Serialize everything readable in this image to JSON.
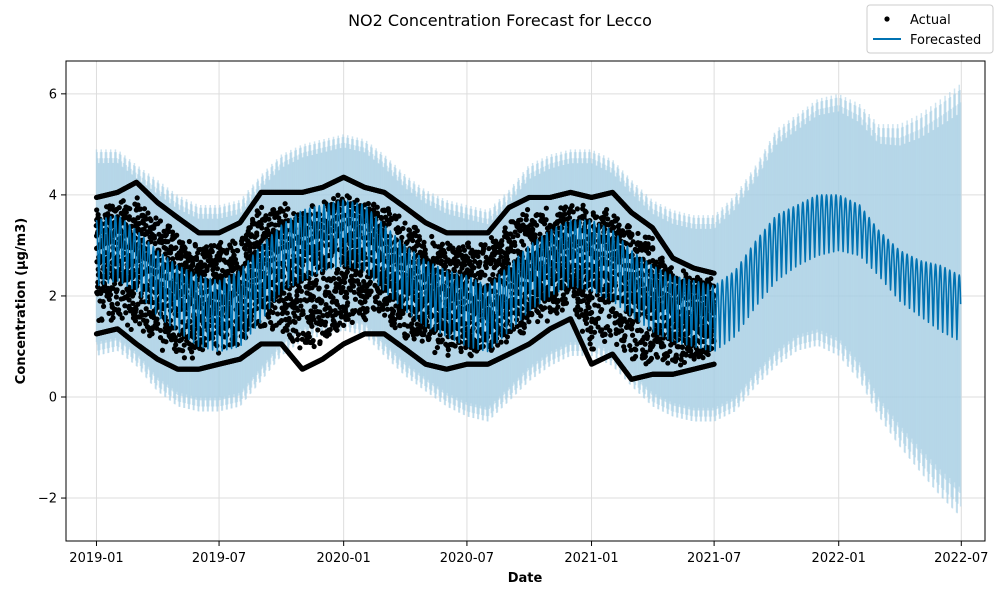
{
  "chart_data": {
    "type": "line",
    "title": "NO2 Concentration Forecast for Lecco",
    "xlabel": "Date",
    "ylabel": "Concentration (µg/m3)",
    "xlim": [
      "2018-11-17",
      "2022-08-05"
    ],
    "ylim": [
      -2.85,
      6.65
    ],
    "x_ticks": [
      "2019-01",
      "2019-07",
      "2020-01",
      "2020-07",
      "2021-01",
      "2021-07",
      "2022-01",
      "2022-07"
    ],
    "y_ticks": [
      -2,
      0,
      2,
      4,
      6
    ],
    "y_tick_labels": [
      "−2",
      "0",
      "2",
      "4",
      "6"
    ],
    "grid": true,
    "legend": {
      "placement": "top-right",
      "entries": [
        "Actual",
        "Forecasted"
      ]
    },
    "colors": {
      "actual": "#000000",
      "forecast": "#0072B2",
      "interval": "#a6cee3"
    },
    "actual_range": [
      "2019-01-01",
      "2021-07-01"
    ],
    "forecast_range": [
      "2019-01-01",
      "2022-06-30"
    ],
    "series": [
      {
        "name": "Forecasted",
        "kind": "line",
        "x": [
          "2019-01-01",
          "2019-02-01",
          "2019-03-01",
          "2019-04-01",
          "2019-05-01",
          "2019-06-01",
          "2019-07-01",
          "2019-08-01",
          "2019-09-01",
          "2019-10-01",
          "2019-11-01",
          "2019-12-01",
          "2020-01-01",
          "2020-02-01",
          "2020-03-01",
          "2020-04-01",
          "2020-05-01",
          "2020-06-01",
          "2020-07-01",
          "2020-08-01",
          "2020-09-01",
          "2020-10-01",
          "2020-11-01",
          "2020-12-01",
          "2021-01-01",
          "2021-02-01",
          "2021-03-01",
          "2021-04-01",
          "2021-05-01",
          "2021-06-01",
          "2021-07-01",
          "2021-08-01",
          "2021-09-01",
          "2021-10-01",
          "2021-11-01",
          "2021-12-01",
          "2022-01-01",
          "2022-02-01",
          "2022-03-01",
          "2022-04-01",
          "2022-05-01",
          "2022-06-01",
          "2022-06-30"
        ],
        "lower": [
          2.2,
          2.3,
          2.1,
          1.6,
          1.3,
          1.0,
          0.9,
          1.0,
          1.5,
          2.1,
          2.3,
          2.5,
          2.6,
          2.5,
          2.1,
          1.7,
          1.4,
          1.2,
          1.0,
          0.9,
          1.3,
          1.7,
          2.0,
          2.2,
          2.1,
          1.9,
          1.6,
          1.3,
          1.1,
          1.0,
          0.9,
          1.2,
          1.8,
          2.3,
          2.6,
          2.8,
          2.9,
          2.8,
          2.4,
          1.9,
          1.6,
          1.3,
          1.1
        ],
        "upper": [
          3.5,
          3.6,
          3.3,
          2.9,
          2.6,
          2.4,
          2.3,
          2.5,
          3.0,
          3.4,
          3.7,
          3.8,
          3.9,
          3.8,
          3.4,
          3.0,
          2.7,
          2.5,
          2.4,
          2.2,
          2.6,
          3.0,
          3.3,
          3.5,
          3.5,
          3.3,
          2.9,
          2.6,
          2.4,
          2.3,
          2.2,
          2.5,
          3.1,
          3.6,
          3.8,
          4.0,
          4.0,
          3.8,
          3.3,
          2.9,
          2.7,
          2.6,
          2.4
        ]
      },
      {
        "name": "Uncertainty interval",
        "kind": "band",
        "x": [
          "2019-01-01",
          "2019-02-01",
          "2019-03-01",
          "2019-04-01",
          "2019-05-01",
          "2019-06-01",
          "2019-07-01",
          "2019-08-01",
          "2019-09-01",
          "2019-10-01",
          "2019-11-01",
          "2019-12-01",
          "2020-01-01",
          "2020-02-01",
          "2020-03-01",
          "2020-04-01",
          "2020-05-01",
          "2020-06-01",
          "2020-07-01",
          "2020-08-01",
          "2020-09-01",
          "2020-10-01",
          "2020-11-01",
          "2020-12-01",
          "2021-01-01",
          "2021-02-01",
          "2021-03-01",
          "2021-04-01",
          "2021-05-01",
          "2021-06-01",
          "2021-07-01",
          "2021-08-01",
          "2021-09-01",
          "2021-10-01",
          "2021-11-01",
          "2021-12-01",
          "2022-01-01",
          "2022-02-01",
          "2022-03-01",
          "2022-04-01",
          "2022-05-01",
          "2022-06-01",
          "2022-06-30"
        ],
        "lower": [
          0.8,
          0.9,
          0.6,
          0.1,
          -0.2,
          -0.3,
          -0.3,
          -0.2,
          0.3,
          0.8,
          1.1,
          1.2,
          1.3,
          1.2,
          0.8,
          0.4,
          0.1,
          -0.2,
          -0.4,
          -0.5,
          -0.1,
          0.3,
          0.6,
          0.8,
          0.8,
          0.6,
          0.2,
          -0.2,
          -0.4,
          -0.5,
          -0.5,
          -0.3,
          0.2,
          0.6,
          0.9,
          1.0,
          0.8,
          0.3,
          -0.4,
          -1.0,
          -1.5,
          -2.0,
          -2.4
        ],
        "upper": [
          4.9,
          4.9,
          4.6,
          4.3,
          4.0,
          3.8,
          3.8,
          3.9,
          4.4,
          4.8,
          5.0,
          5.1,
          5.2,
          5.1,
          4.8,
          4.4,
          4.1,
          3.9,
          3.8,
          3.7,
          4.1,
          4.6,
          4.8,
          4.9,
          4.9,
          4.7,
          4.3,
          3.9,
          3.7,
          3.6,
          3.6,
          4.0,
          4.6,
          5.3,
          5.6,
          5.9,
          6.0,
          5.8,
          5.4,
          5.4,
          5.6,
          5.9,
          6.2
        ]
      },
      {
        "name": "Actual",
        "kind": "scatter",
        "x": [
          "2019-01-01",
          "2019-02-01",
          "2019-03-01",
          "2019-04-01",
          "2019-05-01",
          "2019-06-01",
          "2019-07-01",
          "2019-08-01",
          "2019-09-01",
          "2019-10-01",
          "2019-11-01",
          "2019-12-01",
          "2020-01-01",
          "2020-02-01",
          "2020-03-01",
          "2020-04-01",
          "2020-05-01",
          "2020-06-01",
          "2020-07-01",
          "2020-08-01",
          "2020-09-01",
          "2020-10-01",
          "2020-11-01",
          "2020-12-01",
          "2021-01-01",
          "2021-02-01",
          "2021-03-01",
          "2021-04-01",
          "2021-05-01",
          "2021-06-01",
          "2021-07-01"
        ],
        "lower": [
          1.2,
          1.3,
          1.0,
          0.7,
          0.5,
          0.5,
          0.6,
          0.7,
          1.0,
          1.0,
          0.5,
          0.7,
          1.0,
          1.2,
          1.2,
          0.9,
          0.6,
          0.5,
          0.6,
          0.6,
          0.8,
          1.0,
          1.3,
          1.5,
          0.6,
          0.8,
          0.3,
          0.4,
          0.4,
          0.5,
          0.6
        ],
        "upper": [
          4.0,
          4.1,
          4.3,
          3.9,
          3.6,
          3.3,
          3.3,
          3.5,
          4.1,
          4.1,
          4.1,
          4.2,
          4.4,
          4.2,
          4.1,
          3.8,
          3.5,
          3.3,
          3.3,
          3.3,
          3.8,
          4.0,
          4.0,
          4.1,
          4.0,
          4.1,
          3.7,
          3.4,
          2.8,
          2.6,
          2.5
        ]
      }
    ]
  }
}
